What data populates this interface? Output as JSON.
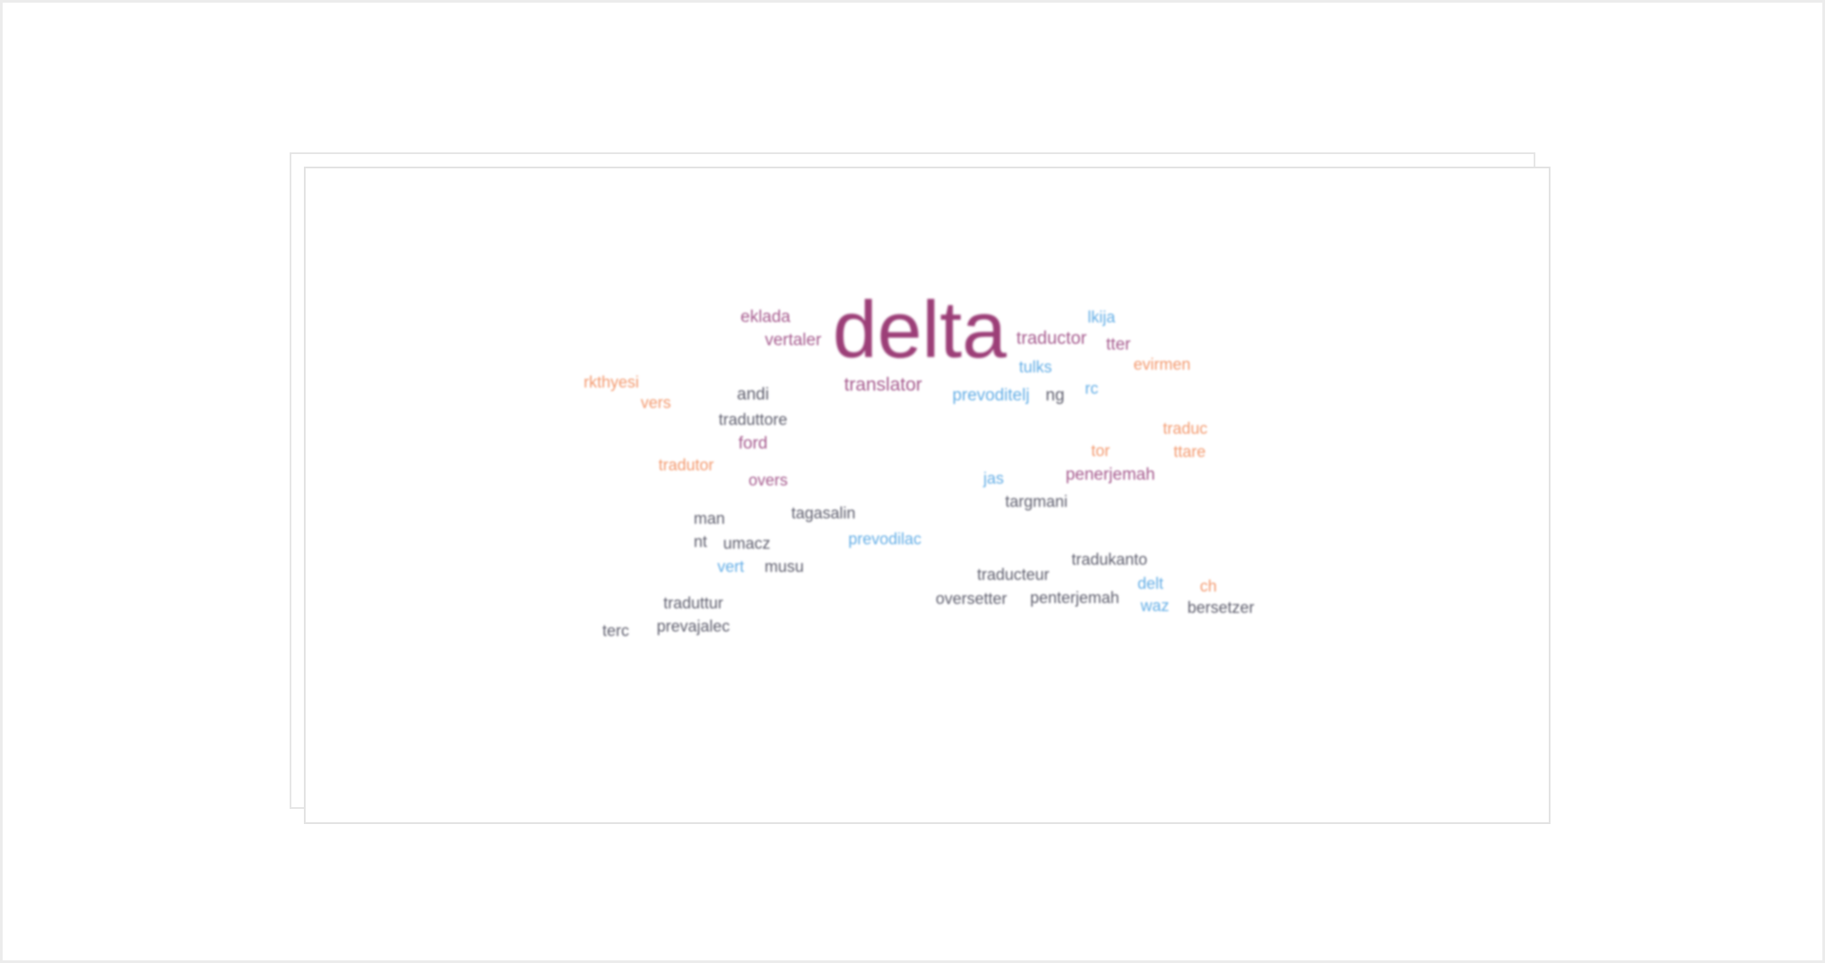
{
  "colors": {
    "plum": "#9c3f78",
    "mauve": "#a65c8f",
    "gray": "#5f5f6e",
    "blue": "#64aee6",
    "orange": "#f39a70"
  },
  "word_cloud": {
    "words": [
      {
        "text": "delta",
        "color": "plum"
      },
      {
        "text": "eklada",
        "color": "mauve"
      },
      {
        "text": "vertaler",
        "color": "mauve"
      },
      {
        "text": "translator",
        "color": "mauve"
      },
      {
        "text": "traductor",
        "color": "mauve"
      },
      {
        "text": "lkija",
        "color": "blue"
      },
      {
        "text": "tter",
        "color": "mauve"
      },
      {
        "text": "evirmen",
        "color": "orange"
      },
      {
        "text": "tulks",
        "color": "blue"
      },
      {
        "text": "rkthyesi",
        "color": "orange"
      },
      {
        "text": "vers",
        "color": "orange"
      },
      {
        "text": "andi",
        "color": "gray"
      },
      {
        "text": "prevoditelj",
        "color": "blue"
      },
      {
        "text": "ng",
        "color": "gray"
      },
      {
        "text": "rc",
        "color": "blue"
      },
      {
        "text": "traduttore",
        "color": "gray"
      },
      {
        "text": "ford",
        "color": "mauve"
      },
      {
        "text": "traduc",
        "color": "orange"
      },
      {
        "text": "tor",
        "color": "orange"
      },
      {
        "text": "ttare",
        "color": "orange"
      },
      {
        "text": "tradutor",
        "color": "orange"
      },
      {
        "text": "overs",
        "color": "mauve"
      },
      {
        "text": "jas",
        "color": "blue"
      },
      {
        "text": "penerjemah",
        "color": "mauve"
      },
      {
        "text": "targmani",
        "color": "gray"
      },
      {
        "text": "man",
        "color": "gray"
      },
      {
        "text": "tagasalin",
        "color": "gray"
      },
      {
        "text": "nt",
        "color": "gray"
      },
      {
        "text": "umacz",
        "color": "gray"
      },
      {
        "text": "prevodilac",
        "color": "blue"
      },
      {
        "text": "vert",
        "color": "blue"
      },
      {
        "text": "musu",
        "color": "gray"
      },
      {
        "text": "tradukanto",
        "color": "gray"
      },
      {
        "text": "traducteur",
        "color": "gray"
      },
      {
        "text": "delt",
        "color": "blue"
      },
      {
        "text": "ch",
        "color": "orange"
      },
      {
        "text": "oversetter",
        "color": "gray"
      },
      {
        "text": "penterjemah",
        "color": "gray"
      },
      {
        "text": "waz",
        "color": "blue"
      },
      {
        "text": "bersetzer",
        "color": "gray"
      },
      {
        "text": "traduttur",
        "color": "gray"
      },
      {
        "text": "terc",
        "color": "gray"
      },
      {
        "text": "prevajalec",
        "color": "gray"
      }
    ]
  }
}
